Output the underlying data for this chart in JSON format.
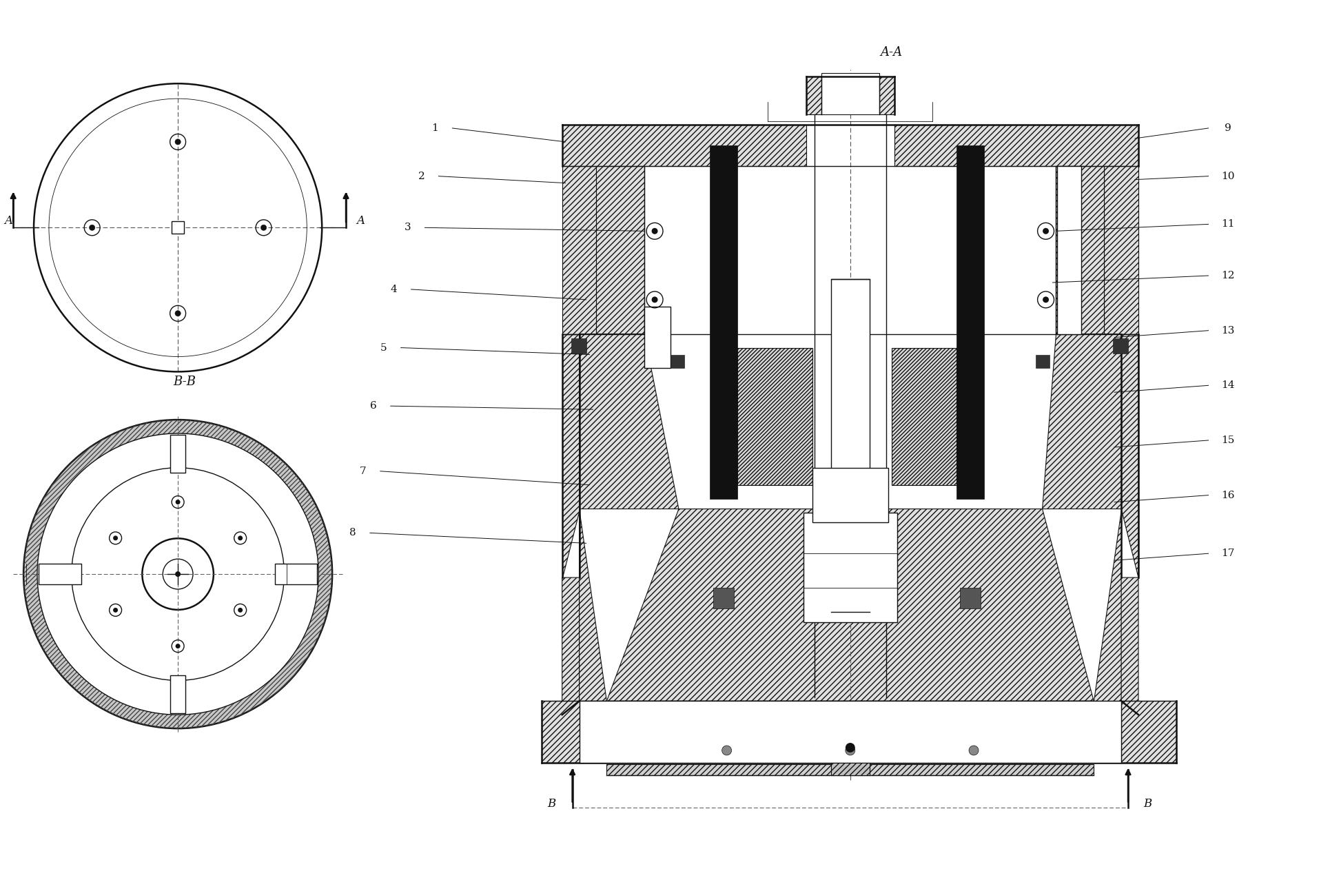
{
  "bg_color": "#ffffff",
  "line_color": "#111111",
  "fig_width": 19.3,
  "fig_height": 12.64,
  "dpi": 100,
  "section_AA": "A-A",
  "section_BB": "B-B",
  "label_A": "A",
  "label_B": "B",
  "labels_left": [
    "1",
    "2",
    "3",
    "4",
    "5",
    "6",
    "7",
    "8"
  ],
  "labels_right": [
    "9",
    "10",
    "11",
    "12",
    "13",
    "14",
    "15",
    "16",
    "17"
  ],
  "hatch_style": "////",
  "hatch_style2": "\\\\\\\\"
}
